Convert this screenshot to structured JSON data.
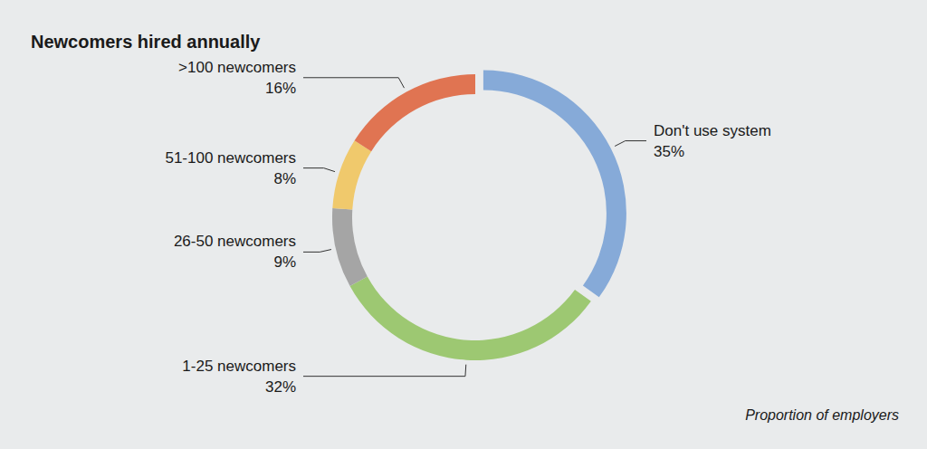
{
  "chart_data": {
    "type": "donut",
    "title": "Newcomers hired annually",
    "categories": [
      "Don't use system",
      "1-25 newcomers",
      "26-50 newcomers",
      "51-100 newcomers",
      ">100 newcomers"
    ],
    "values": [
      35,
      32,
      9,
      8,
      16
    ],
    "value_labels": [
      "35%",
      "32%",
      "9%",
      "8%",
      "16%"
    ],
    "colors": [
      "#86aad8",
      "#9dc872",
      "#a5a5a5",
      "#f0c96c",
      "#e07452"
    ],
    "data_labels": true,
    "caption": "Proportion of employers"
  }
}
